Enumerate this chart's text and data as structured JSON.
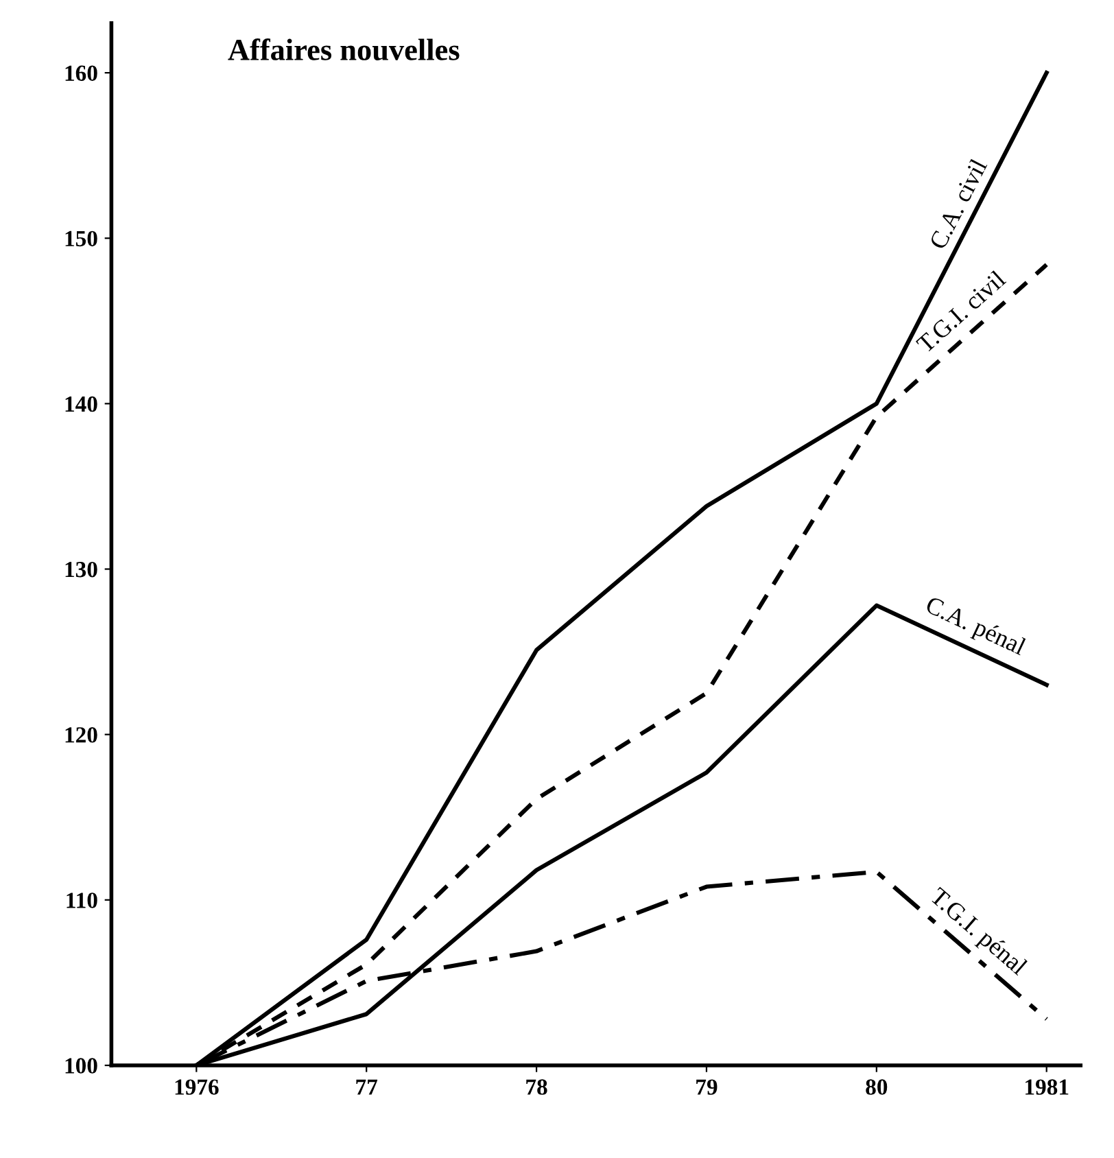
{
  "chart_data": {
    "type": "line",
    "title": "Affaires nouvelles",
    "x": [
      1976,
      1977,
      1978,
      1979,
      1980,
      1981
    ],
    "xlim": [
      1975.5,
      1981.2
    ],
    "ylim": [
      100,
      163
    ],
    "xticks": [
      {
        "value": 1976,
        "label": "1976"
      },
      {
        "value": 1977,
        "label": "77"
      },
      {
        "value": 1978,
        "label": "78"
      },
      {
        "value": 1979,
        "label": "79"
      },
      {
        "value": 1980,
        "label": "80"
      },
      {
        "value": 1981,
        "label": "1981"
      }
    ],
    "yticks": [
      100,
      110,
      120,
      130,
      140,
      150,
      160
    ],
    "grid": false,
    "legend": false,
    "marker": "none",
    "series": [
      {
        "name": "C.A. civil",
        "color": "#000000",
        "line_style": "solid",
        "values": [
          100,
          107.6,
          125.1,
          133.8,
          140,
          160
        ]
      },
      {
        "name": "T.G.I. civil",
        "color": "#000000",
        "line_style": "dashed",
        "values": [
          100,
          106.1,
          116.1,
          122.5,
          139.2,
          148.4
        ]
      },
      {
        "name": "C.A. pénal",
        "color": "#000000",
        "line_style": "solid",
        "values": [
          100,
          103.1,
          111.8,
          117.7,
          127.8,
          123.0
        ]
      },
      {
        "name": "T.G.I. pénal",
        "color": "#000000",
        "line_style": "dashdot",
        "values": [
          100,
          105.1,
          106.9,
          110.8,
          111.7,
          102.8
        ]
      }
    ]
  }
}
